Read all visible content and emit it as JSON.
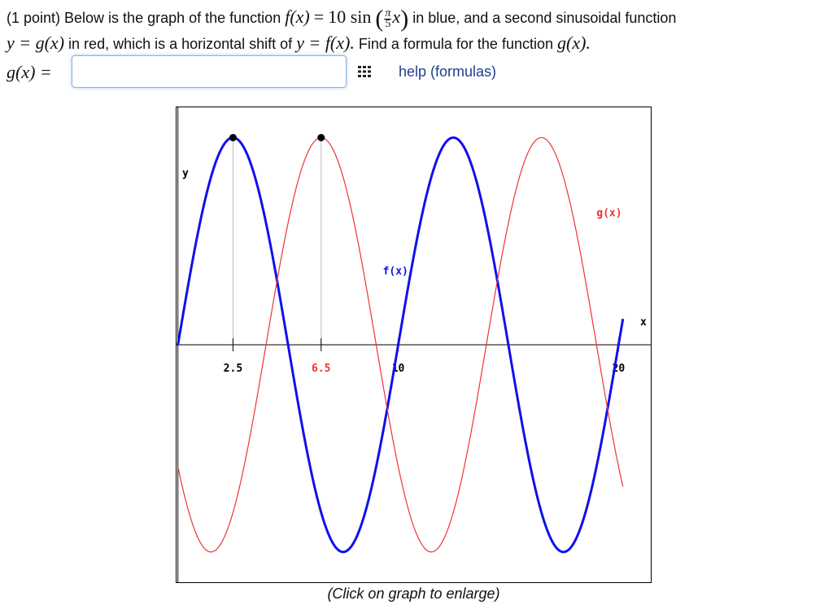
{
  "problem": {
    "line1_prefix": "(1 point) Below is the graph of the function",
    "fx": "f(x)",
    "equals": "=",
    "coef_sin": "10 sin",
    "frac_num": "π",
    "frac_den": "5",
    "var_x": "x",
    "line1_suffix": "in blue, and a second sinusoidal function",
    "line2_y_eq": "y = g(x)",
    "line2_mid": "in red, which is a horizontal shift of",
    "line2_y_eq_f": "y = f(x).",
    "line2_suffix": "Find a formula for the function",
    "line2_gx": "g(x)."
  },
  "answer": {
    "label": "g(x) =",
    "value": "",
    "placeholder": ""
  },
  "equation_editor_icon": "grid-icon",
  "help_link": "help (formulas)",
  "caption": "(Click on graph to enlarge)",
  "colors": {
    "f_curve": "#1010ee",
    "g_curve": "#ee3333",
    "link": "#1d3f8c",
    "input_border": "#8ab4e0"
  },
  "chart_data": {
    "type": "line",
    "xlim": [
      -0.1,
      21.5
    ],
    "ylim": [
      -11.5,
      11.5
    ],
    "grid": false,
    "series": [
      {
        "name": "f(x)",
        "color": "#1010ee",
        "formula": "10*sin(pi*x/5)",
        "x_range": [
          0,
          20.2
        ]
      },
      {
        "name": "g(x)",
        "color": "#ee3333",
        "formula": "10*sin(pi*(x-4)/5)",
        "x_range": [
          0,
          20.2
        ]
      }
    ],
    "x_ticks": [
      {
        "value": 2.5,
        "label": "2.5",
        "color": "#000000"
      },
      {
        "value": 6.5,
        "label": "6.5",
        "color": "#ee3333"
      },
      {
        "value": 10,
        "label": "10",
        "color": "#000000"
      },
      {
        "value": 20,
        "label": "20",
        "color": "#000000"
      }
    ],
    "marked_points": [
      {
        "x": 2.5,
        "y": 10
      },
      {
        "x": 6.5,
        "y": 10
      }
    ],
    "series_labels": [
      {
        "text": "f(x)",
        "x": 9.3,
        "y": 3.4
      },
      {
        "text": "g(x)",
        "x": 19.0,
        "y": 6.2
      }
    ],
    "xlabel": "x",
    "ylabel": "y"
  }
}
